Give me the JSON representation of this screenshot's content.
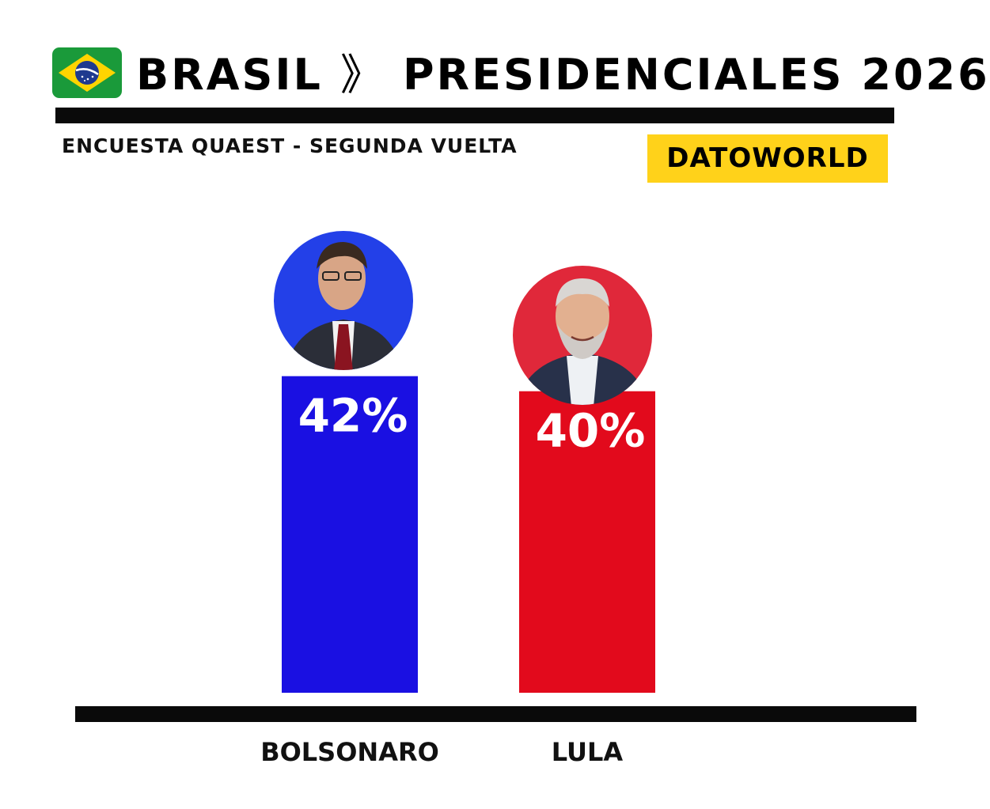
{
  "header": {
    "country": "BRASIL",
    "separator": "》",
    "title": "PRESIDENCIALES 2026",
    "subtitle": "ENCUESTA QUAEST - SEGUNDA VUELTA",
    "brand": "DATOWORLD"
  },
  "colors": {
    "brand_badge": "#ffd21a",
    "bolsonaro": "#1a10e2",
    "lula": "#e20a1c",
    "rule": "#0a0a0a"
  },
  "icons": {
    "flag": "brazil-flag-icon",
    "photos": [
      "bolsonaro-photo",
      "lula-photo"
    ]
  },
  "chart_data": {
    "type": "bar",
    "categories": [
      "BOLSONARO",
      "LULA"
    ],
    "values": [
      42,
      40
    ],
    "value_labels": [
      "42%",
      "40%"
    ],
    "colors": [
      "#1a10e2",
      "#e20a1c"
    ],
    "title": "",
    "xlabel": "",
    "ylabel": "",
    "ylim": [
      0,
      47
    ],
    "grid": false
  }
}
